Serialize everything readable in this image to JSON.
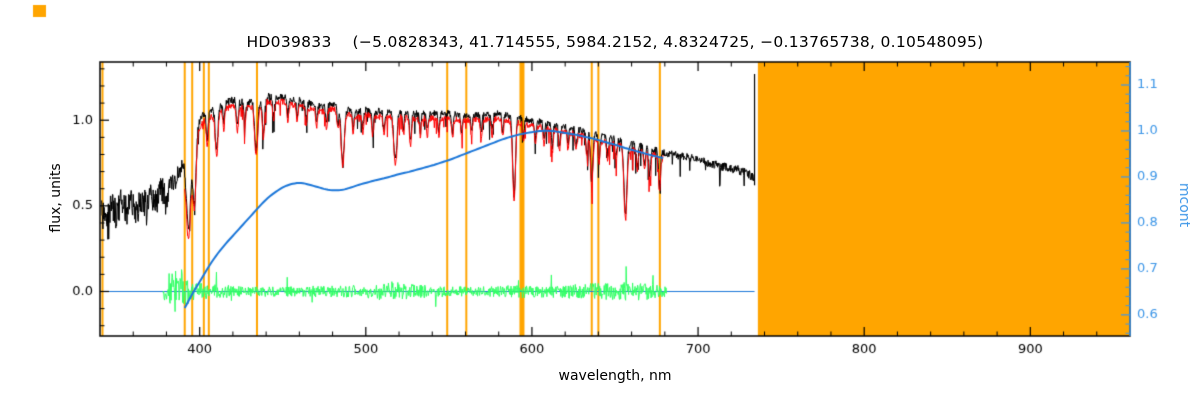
{
  "chart_data": {
    "type": "line",
    "title": "HD039833    (−5.0828343, 41.714555, 5984.2152, 4.8324725, −0.13765738, 0.10548095)",
    "star_id": "HD039833",
    "parameters": [
      -5.0828343,
      41.714555,
      5984.2152,
      4.8324725,
      -0.13765738,
      0.10548095
    ],
    "xlabel": "wavelength, nm",
    "ylabel_left": "flux, units",
    "ylabel_right": "mcont",
    "xlim": [
      340,
      960
    ],
    "ylim_left": [
      -0.26,
      1.34
    ],
    "ylim_right": [
      0.554,
      1.15
    ],
    "grid": false,
    "legend": null,
    "x_ticks": [
      {
        "nm": 400,
        "label": "400"
      },
      {
        "nm": 500,
        "label": "500"
      },
      {
        "nm": 600,
        "label": "600"
      },
      {
        "nm": 700,
        "label": "700"
      },
      {
        "nm": 800,
        "label": "800"
      },
      {
        "nm": 900,
        "label": "900"
      }
    ],
    "x_minor_step_nm": 20,
    "y_left_ticks": [
      {
        "v": 0.0,
        "label": "0.0"
      },
      {
        "v": 0.5,
        "label": "0.5"
      },
      {
        "v": 1.0,
        "label": "1.0"
      }
    ],
    "y_left_minor_step": 0.1,
    "y_right_ticks": [
      {
        "v": 0.6,
        "label": "0.6"
      },
      {
        "v": 0.7,
        "label": "0.7"
      },
      {
        "v": 0.8,
        "label": "0.8"
      },
      {
        "v": 0.9,
        "label": "0.9"
      },
      {
        "v": 1.0,
        "label": "1.0"
      },
      {
        "v": 1.1,
        "label": "1.1"
      }
    ],
    "y_right_minor_step": 0.02,
    "colors": {
      "observed": "#000000",
      "synthetic": "#ff0000",
      "continuum": "#1c77d9",
      "residual": "#33ff66",
      "mask": "#ffa500",
      "axis_right": "#3e97e8",
      "frame": "#000000",
      "background": "#ffffff"
    },
    "masked_region_nm": [
      736,
      960
    ],
    "mask_lines": [
      {
        "nm": 341.5,
        "lw": 2
      },
      {
        "nm": 391.0,
        "lw": 2
      },
      {
        "nm": 395.5,
        "lw": 2
      },
      {
        "nm": 402.5,
        "lw": 2
      },
      {
        "nm": 405.5,
        "lw": 2
      },
      {
        "nm": 434.5,
        "lw": 2
      },
      {
        "nm": 549.0,
        "lw": 2
      },
      {
        "nm": 560.5,
        "lw": 2
      },
      {
        "nm": 594.0,
        "lw": 5
      },
      {
        "nm": 636.0,
        "lw": 2
      },
      {
        "nm": 640.0,
        "lw": 2
      },
      {
        "nm": 677.0,
        "lw": 2
      }
    ],
    "absorption_lines": [
      [
        393.4,
        0.45,
        1.2
      ],
      [
        396.8,
        0.4,
        1.0
      ],
      [
        404.6,
        0.15,
        0.6
      ],
      [
        410.2,
        0.25,
        0.8
      ],
      [
        414.5,
        0.12,
        0.5
      ],
      [
        422.7,
        0.15,
        0.6
      ],
      [
        427.2,
        0.12,
        0.5
      ],
      [
        434.0,
        0.28,
        0.9
      ],
      [
        438.4,
        0.2,
        0.7
      ],
      [
        444.5,
        0.1,
        0.5
      ],
      [
        453.1,
        0.1,
        0.5
      ],
      [
        458.7,
        0.1,
        0.5
      ],
      [
        464.2,
        0.1,
        0.5
      ],
      [
        470.3,
        0.1,
        0.5
      ],
      [
        476.3,
        0.1,
        0.5
      ],
      [
        483.2,
        0.1,
        0.5
      ],
      [
        486.1,
        0.3,
        0.9
      ],
      [
        492.4,
        0.1,
        0.5
      ],
      [
        498.2,
        0.1,
        0.5
      ],
      [
        504.2,
        0.12,
        0.5
      ],
      [
        511.0,
        0.1,
        0.5
      ],
      [
        517.3,
        0.22,
        0.7
      ],
      [
        518.4,
        0.18,
        0.6
      ],
      [
        522.7,
        0.1,
        0.5
      ],
      [
        526.9,
        0.16,
        0.6
      ],
      [
        532.8,
        0.1,
        0.5
      ],
      [
        537.1,
        0.1,
        0.5
      ],
      [
        544.0,
        0.1,
        0.5
      ],
      [
        552.2,
        0.12,
        0.5
      ],
      [
        557.6,
        0.1,
        0.5
      ],
      [
        563.6,
        0.1,
        0.5
      ],
      [
        569.5,
        0.1,
        0.5
      ],
      [
        576.1,
        0.1,
        0.5
      ],
      [
        582.4,
        0.1,
        0.5
      ],
      [
        589.0,
        0.28,
        0.8
      ],
      [
        589.6,
        0.22,
        0.7
      ],
      [
        594.9,
        0.1,
        0.5
      ],
      [
        602.1,
        0.1,
        0.5
      ],
      [
        607.3,
        0.1,
        0.5
      ],
      [
        612.2,
        0.14,
        0.5
      ],
      [
        616.6,
        0.12,
        0.5
      ],
      [
        621.7,
        0.1,
        0.5
      ],
      [
        626.5,
        0.1,
        0.5
      ],
      [
        633.0,
        0.12,
        0.5
      ],
      [
        636.0,
        0.28,
        0.7
      ],
      [
        640.4,
        0.14,
        0.5
      ],
      [
        645.6,
        0.1,
        0.5
      ],
      [
        650.7,
        0.1,
        0.5
      ],
      [
        656.3,
        0.42,
        0.9
      ],
      [
        663.4,
        0.12,
        0.5
      ],
      [
        667.8,
        0.1,
        0.5
      ],
      [
        671.0,
        0.15,
        0.6
      ],
      [
        676.8,
        0.2,
        0.6
      ]
    ],
    "series": {
      "observed": {
        "name": "observed spectrum",
        "x_range_nm": [
          341,
          734
        ],
        "sample_step_nm": 0.25,
        "noise_seed": 12345,
        "dip_prob": 0.07,
        "dip_scale": 0.14,
        "envelope": [
          [
            341,
            0.45
          ],
          [
            344,
            0.4
          ],
          [
            347,
            0.52
          ],
          [
            350,
            0.44
          ],
          [
            353,
            0.55
          ],
          [
            356,
            0.47
          ],
          [
            359,
            0.52
          ],
          [
            362,
            0.45
          ],
          [
            365,
            0.55
          ],
          [
            368,
            0.5
          ],
          [
            371,
            0.58
          ],
          [
            374,
            0.52
          ],
          [
            377,
            0.6
          ],
          [
            380,
            0.55
          ],
          [
            383,
            0.62
          ],
          [
            386,
            0.66
          ],
          [
            389,
            0.72
          ],
          [
            392,
            0.78
          ],
          [
            395,
            0.88
          ],
          [
            398,
            0.96
          ],
          [
            402,
            1.03
          ],
          [
            406,
            1.05
          ],
          [
            410,
            1.07
          ],
          [
            414,
            1.1
          ],
          [
            418,
            1.11
          ],
          [
            422,
            1.12
          ],
          [
            426,
            1.1
          ],
          [
            430,
            1.11
          ],
          [
            435,
            1.1
          ],
          [
            440,
            1.14
          ],
          [
            445,
            1.13
          ],
          [
            450,
            1.14
          ],
          [
            455,
            1.12
          ],
          [
            460,
            1.12
          ],
          [
            465,
            1.1
          ],
          [
            470,
            1.09
          ],
          [
            475,
            1.08
          ],
          [
            480,
            1.1
          ],
          [
            485,
            1.06
          ],
          [
            490,
            1.06
          ],
          [
            495,
            1.05
          ],
          [
            500,
            1.06
          ],
          [
            510,
            1.05
          ],
          [
            520,
            1.05
          ],
          [
            530,
            1.04
          ],
          [
            540,
            1.04
          ],
          [
            550,
            1.04
          ],
          [
            560,
            1.03
          ],
          [
            570,
            1.03
          ],
          [
            580,
            1.04
          ],
          [
            590,
            1.02
          ],
          [
            600,
            1.0
          ],
          [
            610,
            0.98
          ],
          [
            620,
            0.96
          ],
          [
            630,
            0.94
          ],
          [
            640,
            0.91
          ],
          [
            650,
            0.89
          ],
          [
            660,
            0.86
          ],
          [
            670,
            0.84
          ],
          [
            680,
            0.81
          ],
          [
            690,
            0.79
          ],
          [
            700,
            0.77
          ],
          [
            710,
            0.74
          ],
          [
            720,
            0.72
          ],
          [
            728,
            0.7
          ],
          [
            734,
            0.66
          ]
        ],
        "noise_envelope": [
          [
            341,
            0.085
          ],
          [
            368,
            0.08
          ],
          [
            383,
            0.07
          ],
          [
            389,
            0.045
          ],
          [
            394,
            0.03
          ],
          [
            400,
            0.025
          ],
          [
            450,
            0.022
          ],
          [
            500,
            0.02
          ],
          [
            560,
            0.018
          ],
          [
            620,
            0.02
          ],
          [
            680,
            0.022
          ],
          [
            734,
            0.028
          ]
        ]
      },
      "synthetic": {
        "name": "synthetic fit",
        "x_range_nm": [
          391,
          679
        ],
        "sample_step_nm": 0.25,
        "noise_seed": 54321,
        "noise_amp": 0.018,
        "dip_prob": 0.05,
        "dip_scale": 0.11,
        "envelope": [
          [
            391,
            0.66
          ],
          [
            394,
            0.78
          ],
          [
            397,
            0.9
          ],
          [
            400,
            0.96
          ],
          [
            404,
            1.01
          ],
          [
            408,
            1.02
          ],
          [
            412,
            1.05
          ],
          [
            416,
            1.07
          ],
          [
            420,
            1.08
          ],
          [
            425,
            1.07
          ],
          [
            430,
            1.08
          ],
          [
            435,
            1.07
          ],
          [
            440,
            1.11
          ],
          [
            445,
            1.1
          ],
          [
            450,
            1.11
          ],
          [
            455,
            1.09
          ],
          [
            460,
            1.09
          ],
          [
            465,
            1.07
          ],
          [
            470,
            1.06
          ],
          [
            475,
            1.05
          ],
          [
            480,
            1.07
          ],
          [
            485,
            1.03
          ],
          [
            490,
            1.03
          ],
          [
            495,
            1.02
          ],
          [
            500,
            1.03
          ],
          [
            510,
            1.02
          ],
          [
            520,
            1.02
          ],
          [
            530,
            1.01
          ],
          [
            540,
            1.01
          ],
          [
            550,
            1.01
          ],
          [
            560,
            1.0
          ],
          [
            570,
            1.0
          ],
          [
            580,
            1.01
          ],
          [
            590,
            0.99
          ],
          [
            600,
            0.97
          ],
          [
            610,
            0.95
          ],
          [
            620,
            0.93
          ],
          [
            630,
            0.91
          ],
          [
            640,
            0.88
          ],
          [
            650,
            0.86
          ],
          [
            660,
            0.83
          ],
          [
            670,
            0.81
          ],
          [
            679,
            0.78
          ]
        ]
      },
      "continuum": {
        "name": "continuum (mcont, right axis)",
        "axis": "right",
        "points": [
          [
            391,
            0.615
          ],
          [
            396,
            0.648
          ],
          [
            401,
            0.678
          ],
          [
            406,
            0.708
          ],
          [
            411,
            0.734
          ],
          [
            416,
            0.756
          ],
          [
            421,
            0.776
          ],
          [
            426,
            0.796
          ],
          [
            431,
            0.816
          ],
          [
            436,
            0.836
          ],
          [
            441,
            0.854
          ],
          [
            446,
            0.868
          ],
          [
            451,
            0.879
          ],
          [
            456,
            0.885
          ],
          [
            461,
            0.887
          ],
          [
            466,
            0.883
          ],
          [
            471,
            0.878
          ],
          [
            476,
            0.873
          ],
          [
            481,
            0.871
          ],
          [
            486,
            0.872
          ],
          [
            491,
            0.877
          ],
          [
            496,
            0.883
          ],
          [
            501,
            0.888
          ],
          [
            506,
            0.893
          ],
          [
            511,
            0.897
          ],
          [
            516,
            0.902
          ],
          [
            521,
            0.907
          ],
          [
            526,
            0.911
          ],
          [
            531,
            0.916
          ],
          [
            536,
            0.921
          ],
          [
            541,
            0.926
          ],
          [
            546,
            0.932
          ],
          [
            551,
            0.938
          ],
          [
            556,
            0.945
          ],
          [
            561,
            0.952
          ],
          [
            566,
            0.959
          ],
          [
            571,
            0.966
          ],
          [
            576,
            0.973
          ],
          [
            581,
            0.98
          ],
          [
            586,
            0.986
          ],
          [
            591,
            0.991
          ],
          [
            596,
            0.995
          ],
          [
            601,
            0.998
          ],
          [
            606,
            1.0
          ],
          [
            611,
            1.0
          ],
          [
            616,
            0.998
          ],
          [
            621,
            0.995
          ],
          [
            626,
            0.992
          ],
          [
            631,
            0.988
          ],
          [
            636,
            0.984
          ],
          [
            641,
            0.979
          ],
          [
            646,
            0.974
          ],
          [
            651,
            0.969
          ],
          [
            656,
            0.963
          ],
          [
            661,
            0.958
          ],
          [
            666,
            0.953
          ],
          [
            671,
            0.948
          ],
          [
            679,
            0.941
          ]
        ]
      },
      "residual": {
        "name": "residuals (obs - fit)",
        "center": 0.0,
        "x_range_nm": [
          378,
          681
        ],
        "sample_step_nm": 0.3,
        "noise_seed": 99,
        "amplitude_envelope": [
          [
            378,
            0.02
          ],
          [
            380,
            0.09
          ],
          [
            383,
            0.13
          ],
          [
            386,
            0.12
          ],
          [
            390,
            0.1
          ],
          [
            394,
            0.07
          ],
          [
            398,
            0.05
          ],
          [
            405,
            0.045
          ],
          [
            412,
            0.04
          ],
          [
            420,
            0.035
          ],
          [
            430,
            0.033
          ],
          [
            440,
            0.03
          ],
          [
            450,
            0.03
          ],
          [
            460,
            0.03
          ],
          [
            470,
            0.03
          ],
          [
            480,
            0.033
          ],
          [
            490,
            0.035
          ],
          [
            500,
            0.04
          ],
          [
            510,
            0.045
          ],
          [
            516,
            0.06
          ],
          [
            522,
            0.05
          ],
          [
            530,
            0.04
          ],
          [
            540,
            0.035
          ],
          [
            550,
            0.03
          ],
          [
            560,
            0.03
          ],
          [
            570,
            0.03
          ],
          [
            580,
            0.033
          ],
          [
            590,
            0.04
          ],
          [
            600,
            0.035
          ],
          [
            610,
            0.035
          ],
          [
            620,
            0.04
          ],
          [
            630,
            0.045
          ],
          [
            640,
            0.05
          ],
          [
            650,
            0.05
          ],
          [
            656,
            0.06
          ],
          [
            662,
            0.055
          ],
          [
            668,
            0.05
          ],
          [
            674,
            0.04
          ],
          [
            681,
            0.03
          ]
        ]
      },
      "baseline": {
        "name": "zero baseline",
        "flux": 0.0,
        "x_range_nm": [
          341,
          734
        ]
      }
    },
    "end_spike": {
      "nm": 734,
      "flux_from": 0.62,
      "flux_to": 1.27
    },
    "artifacts": [
      {
        "x": 33,
        "y": 5,
        "w": 13,
        "h": 12
      }
    ]
  }
}
